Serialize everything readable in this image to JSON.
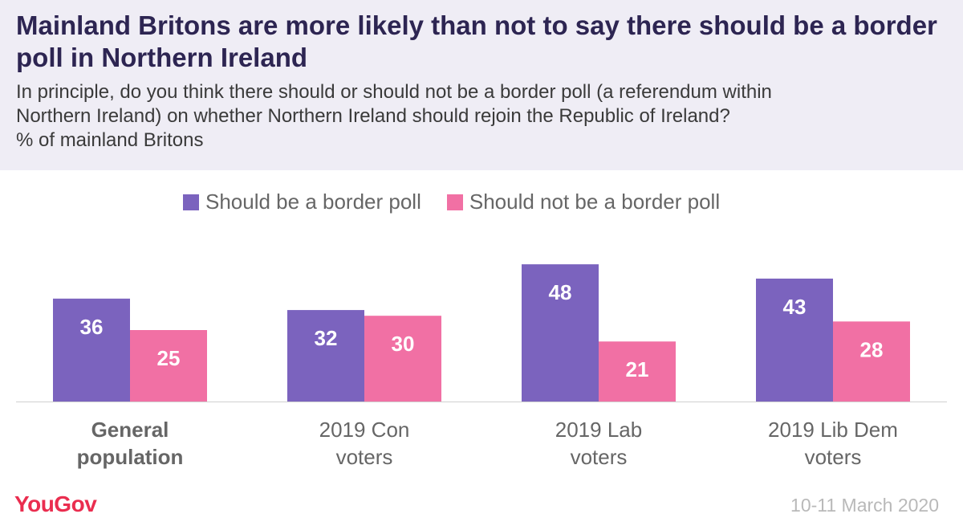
{
  "title": "Mainland Britons are more likely than not to say there should be a border poll in Northern Ireland",
  "subtitle_lines": [
    "In principle, do you think there should or should not be a border poll (a referendum within",
    "Northern Ireland) on whether Northern Ireland should rejoin the Republic of Ireland?",
    "% of mainland Britons"
  ],
  "brand": "YouGov",
  "date": "10-11 March 2020",
  "colors": {
    "header_bg": "#efedf5",
    "series_1": "#7b63be",
    "series_2": "#f170a4",
    "brand": "#ea2d4f"
  },
  "chart_data": {
    "type": "bar",
    "title": "Mainland Britons are more likely than not to say there should be a border poll in Northern Ireland",
    "xlabel": "",
    "ylabel": "% of mainland Britons",
    "ylim": [
      0,
      55
    ],
    "grid": false,
    "legend_position": "top",
    "categories": [
      [
        "General",
        "population"
      ],
      [
        "2019 Con",
        "voters"
      ],
      [
        "2019 Lab",
        "voters"
      ],
      [
        "2019 Lib Dem",
        "voters"
      ]
    ],
    "category_bold": [
      true,
      false,
      false,
      false
    ],
    "series": [
      {
        "name": "Should be a border poll",
        "values": [
          36,
          32,
          48,
          43
        ],
        "color": "#7b63be"
      },
      {
        "name": "Should not be a border poll",
        "values": [
          25,
          30,
          21,
          28
        ],
        "color": "#f170a4"
      }
    ]
  }
}
